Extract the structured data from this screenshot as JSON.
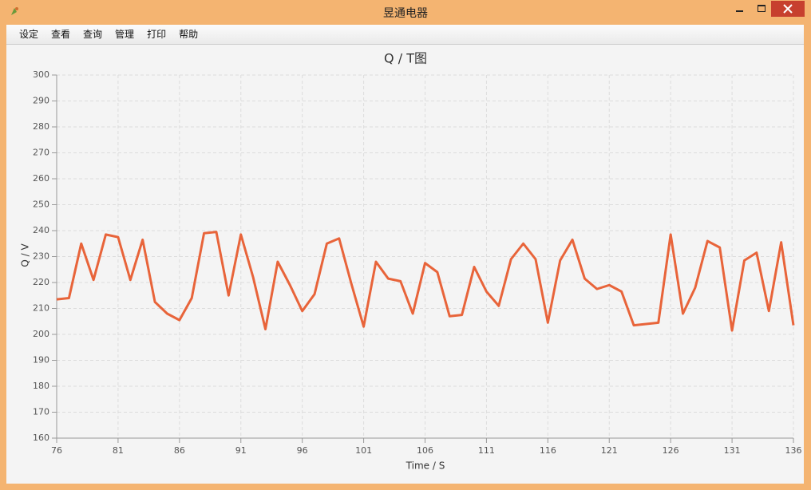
{
  "window": {
    "title": "昱通电器"
  },
  "menu": {
    "items": [
      "设定",
      "查看",
      "查询",
      "管理",
      "打印",
      "帮助"
    ]
  },
  "chart_data": {
    "type": "line",
    "title": "Q / T图",
    "x_label": "Time / S",
    "y_label": "Q /  V",
    "x": [
      76,
      77,
      78,
      79,
      80,
      81,
      82,
      83,
      84,
      85,
      86,
      87,
      88,
      89,
      90,
      91,
      92,
      93,
      94,
      95,
      96,
      97,
      98,
      99,
      100,
      101,
      102,
      103,
      104,
      105,
      106,
      107,
      108,
      109,
      110,
      111,
      112,
      113,
      114,
      115,
      116,
      117,
      118,
      119,
      120,
      121,
      122,
      123,
      124,
      125,
      126,
      127,
      128,
      129,
      130,
      131,
      132,
      133,
      134,
      135,
      136
    ],
    "values": [
      213.5,
      214,
      235,
      221,
      238.5,
      237.5,
      221,
      236.5,
      212.5,
      208,
      205.5,
      214,
      239,
      239.5,
      215,
      238.5,
      222,
      202,
      228,
      219,
      209,
      215.5,
      235,
      237,
      219.5,
      203,
      228,
      221.5,
      220.5,
      208,
      227.5,
      224,
      207,
      207.5,
      226,
      216.5,
      211,
      229,
      235,
      229,
      204.5,
      228.5,
      236.5,
      221.5,
      217.5,
      219,
      216.5,
      203.5,
      204,
      204.5,
      238.5,
      208,
      218,
      236,
      233.5,
      201.5,
      228.5,
      231.5,
      209,
      235.5,
      203.5
    ],
    "color": "#e8643a",
    "xlim": [
      76,
      136
    ],
    "ylim": [
      160,
      300
    ],
    "xticks": [
      76,
      81,
      86,
      91,
      96,
      101,
      106,
      111,
      116,
      121,
      126,
      131,
      136
    ],
    "yticks": [
      160,
      170,
      180,
      190,
      200,
      210,
      220,
      230,
      240,
      250,
      260,
      270,
      280,
      290,
      300
    ],
    "grid": true
  }
}
